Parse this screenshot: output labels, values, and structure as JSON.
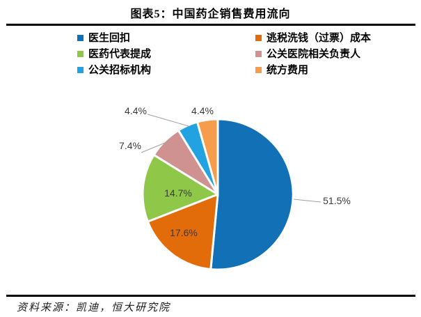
{
  "header": {
    "title": "图表5：中国药企销售费用流向"
  },
  "footer": {
    "source": "资料来源：凯迪，恒大研究院"
  },
  "chart_data": {
    "type": "pie",
    "title": "图表5：中国药企销售费用流向",
    "categories": [
      "医生回扣",
      "逃税洗钱（过票）成本",
      "医药代表提成",
      "公关医院相关负责人",
      "公关招标机构",
      "统方费用"
    ],
    "values": [
      51.5,
      17.6,
      14.7,
      7.4,
      4.4,
      4.4
    ],
    "labels": [
      "51.5%",
      "17.6%",
      "14.7%",
      "7.4%",
      "4.4%",
      "4.4%"
    ],
    "colors": [
      "#1271b6",
      "#e36c0a",
      "#8fc848",
      "#d09290",
      "#22a2e1",
      "#f59c4d"
    ],
    "label_color": "#3a3a3a",
    "leader_line_color": "#a0a0a0",
    "legend_position": "top",
    "start_angle_deg": 0,
    "direction": "clockwise",
    "source": "资料来源：凯迪，恒大研究院"
  }
}
